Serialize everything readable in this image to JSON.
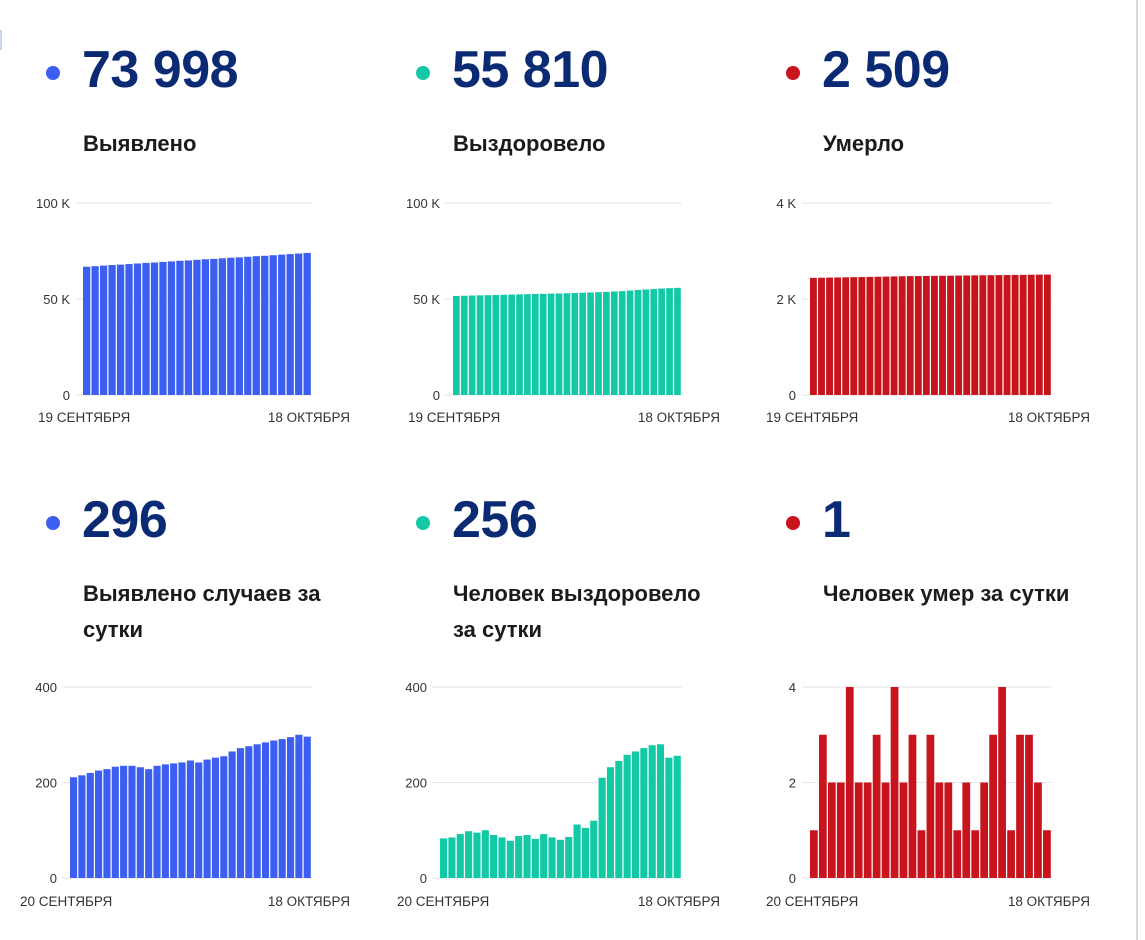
{
  "colors": {
    "blue": "#3d5ff1",
    "teal": "#13c9a5",
    "red": "#c8141c",
    "number": "#0b2a74",
    "grid": "#e6e6e6",
    "axis_text": "#333333"
  },
  "cards": [
    {
      "number": "73 998",
      "label": "Выявлено",
      "color": "#3d5ff1",
      "chart_data": {
        "type": "bar",
        "ylim": [
          0,
          100000
        ],
        "ytick_values": [
          0,
          50000,
          100000
        ],
        "yticks": [
          "0",
          "50 K",
          "100 K"
        ],
        "xlabel_start": "19 СЕНТЯБРЯ",
        "xlabel_end": "18 ОКТЯБРЯ",
        "values": [
          66800,
          67100,
          67400,
          67700,
          67900,
          68200,
          68500,
          68800,
          69000,
          69300,
          69600,
          69900,
          70100,
          70400,
          70700,
          70900,
          71200,
          71500,
          71700,
          72000,
          72300,
          72500,
          72800,
          73100,
          73400,
          73700,
          73998
        ]
      }
    },
    {
      "number": "55 810",
      "label": "Выздоровело",
      "color": "#13c9a5",
      "chart_data": {
        "type": "bar",
        "ylim": [
          0,
          100000
        ],
        "ytick_values": [
          0,
          50000,
          100000
        ],
        "yticks": [
          "0",
          "50 K",
          "100 K"
        ],
        "xlabel_start": "19 СЕНТЯБРЯ",
        "xlabel_end": "18 ОКТЯБРЯ",
        "values": [
          51600,
          51700,
          51800,
          51900,
          52000,
          52100,
          52200,
          52300,
          52400,
          52500,
          52600,
          52700,
          52800,
          52900,
          53000,
          53100,
          53250,
          53400,
          53550,
          53700,
          53900,
          54100,
          54400,
          54700,
          54950,
          55200,
          55450,
          55650,
          55810
        ]
      }
    },
    {
      "number": "2 509",
      "label": "Умерло",
      "color": "#c8141c",
      "chart_data": {
        "type": "bar",
        "ylim": [
          0,
          4000
        ],
        "ytick_values": [
          0,
          2000,
          4000
        ],
        "yticks": [
          "0",
          "2 K",
          "4 K"
        ],
        "xlabel_start": "19 СЕНТЯБРЯ",
        "xlabel_end": "18 ОКТЯБРЯ",
        "values": [
          2440,
          2443,
          2446,
          2449,
          2452,
          2455,
          2458,
          2461,
          2464,
          2467,
          2470,
          2473,
          2476,
          2478,
          2480,
          2482,
          2484,
          2486,
          2488,
          2490,
          2492,
          2494,
          2496,
          2498,
          2500,
          2502,
          2504,
          2506,
          2508,
          2509
        ]
      }
    },
    {
      "number": "296",
      "label": "Выявлено случаев за сутки",
      "color": "#3d5ff1",
      "chart_data": {
        "type": "bar",
        "ylim": [
          0,
          400
        ],
        "ytick_values": [
          0,
          200,
          400
        ],
        "yticks": [
          "0",
          "200",
          "400"
        ],
        "xlabel_start": "20 СЕНТЯБРЯ",
        "xlabel_end": "18 ОКТЯБРЯ",
        "values": [
          211,
          215,
          220,
          225,
          228,
          233,
          235,
          235,
          232,
          228,
          235,
          238,
          240,
          242,
          246,
          242,
          248,
          252,
          255,
          265,
          272,
          276,
          280,
          284,
          288,
          291,
          295,
          300,
          296
        ]
      }
    },
    {
      "number": "256",
      "label": "Человек выздоровело за сутки",
      "color": "#13c9a5",
      "chart_data": {
        "type": "bar",
        "ylim": [
          0,
          400
        ],
        "ytick_values": [
          0,
          200,
          400
        ],
        "yticks": [
          "0",
          "200",
          "400"
        ],
        "xlabel_start": "20 СЕНТЯБРЯ",
        "xlabel_end": "18 ОКТЯБРЯ",
        "values": [
          83,
          85,
          92,
          98,
          95,
          100,
          90,
          85,
          78,
          88,
          90,
          82,
          92,
          85,
          80,
          86,
          112,
          105,
          120,
          210,
          232,
          245,
          258,
          265,
          272,
          278,
          280,
          252,
          256
        ]
      }
    },
    {
      "number": "1",
      "label": "Человек умер за сутки",
      "color": "#c8141c",
      "chart_data": {
        "type": "bar",
        "ylim": [
          0,
          4
        ],
        "ytick_values": [
          0,
          2,
          4
        ],
        "yticks": [
          "0",
          "2",
          "4"
        ],
        "xlabel_start": "20 СЕНТЯБРЯ",
        "xlabel_end": "18 ОКТЯБРЯ",
        "values": [
          1,
          3,
          2,
          2,
          4,
          2,
          2,
          3,
          2,
          4,
          2,
          3,
          1,
          3,
          2,
          2,
          1,
          2,
          1,
          2,
          3,
          4,
          1,
          3,
          3,
          2,
          1
        ]
      }
    }
  ]
}
